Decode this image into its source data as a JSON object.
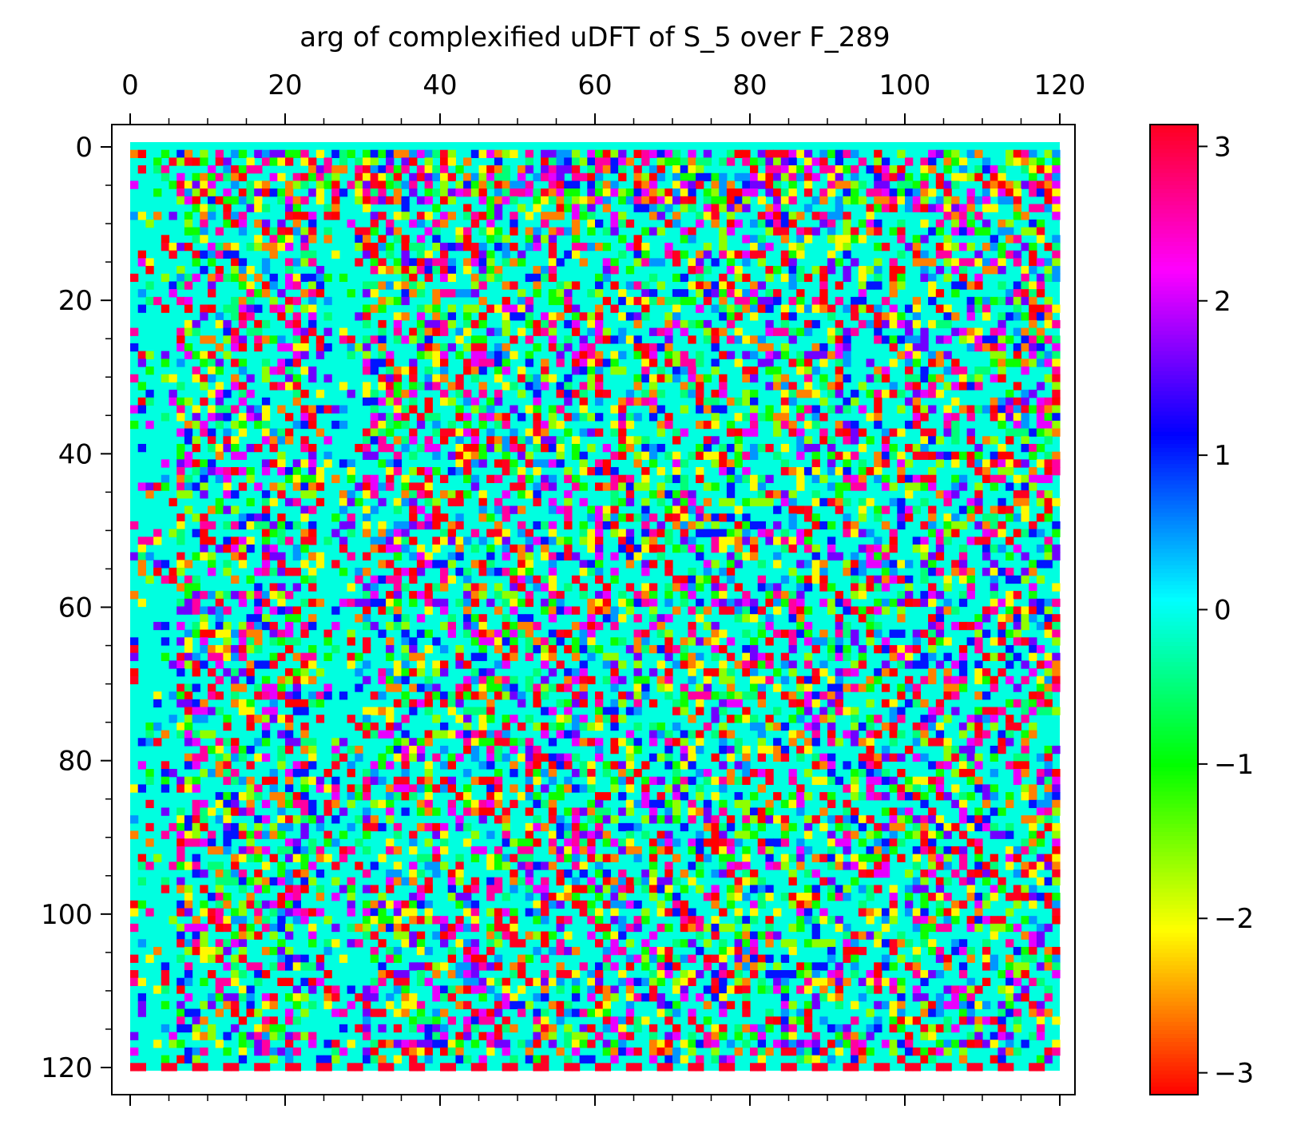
{
  "chart_data": {
    "type": "heatmap",
    "title": "arg of complexified uDFT of S_5 over F_289",
    "xlabel": "",
    "ylabel": "",
    "rows": 120,
    "cols": 120,
    "x_ticks": [
      0,
      20,
      40,
      60,
      80,
      100,
      120
    ],
    "x_tick_labels": [
      "0",
      "20",
      "40",
      "60",
      "80",
      "100",
      "120"
    ],
    "y_ticks": [
      0,
      20,
      40,
      60,
      80,
      100,
      120
    ],
    "y_tick_labels": [
      "0",
      "20",
      "40",
      "60",
      "80",
      "100",
      "120"
    ],
    "x_axis_position": "top",
    "y_axis_inverted": true,
    "colormap": "hsv",
    "value_range": [
      -3.14159,
      3.14159
    ],
    "colorbar": {
      "position": "right",
      "ticks": [
        3,
        2,
        1,
        0,
        -1,
        -2,
        -3
      ],
      "tick_labels": [
        "3",
        "2",
        "1",
        "0",
        "−1",
        "−2",
        "−3"
      ]
    },
    "dominant_value": 0,
    "dominant_color": "#00ffe0",
    "row_notes": {
      "row_0": "mostly 0 (cyan)",
      "row_120_region": "alternating red (±π) and cyan"
    },
    "grid": false
  }
}
